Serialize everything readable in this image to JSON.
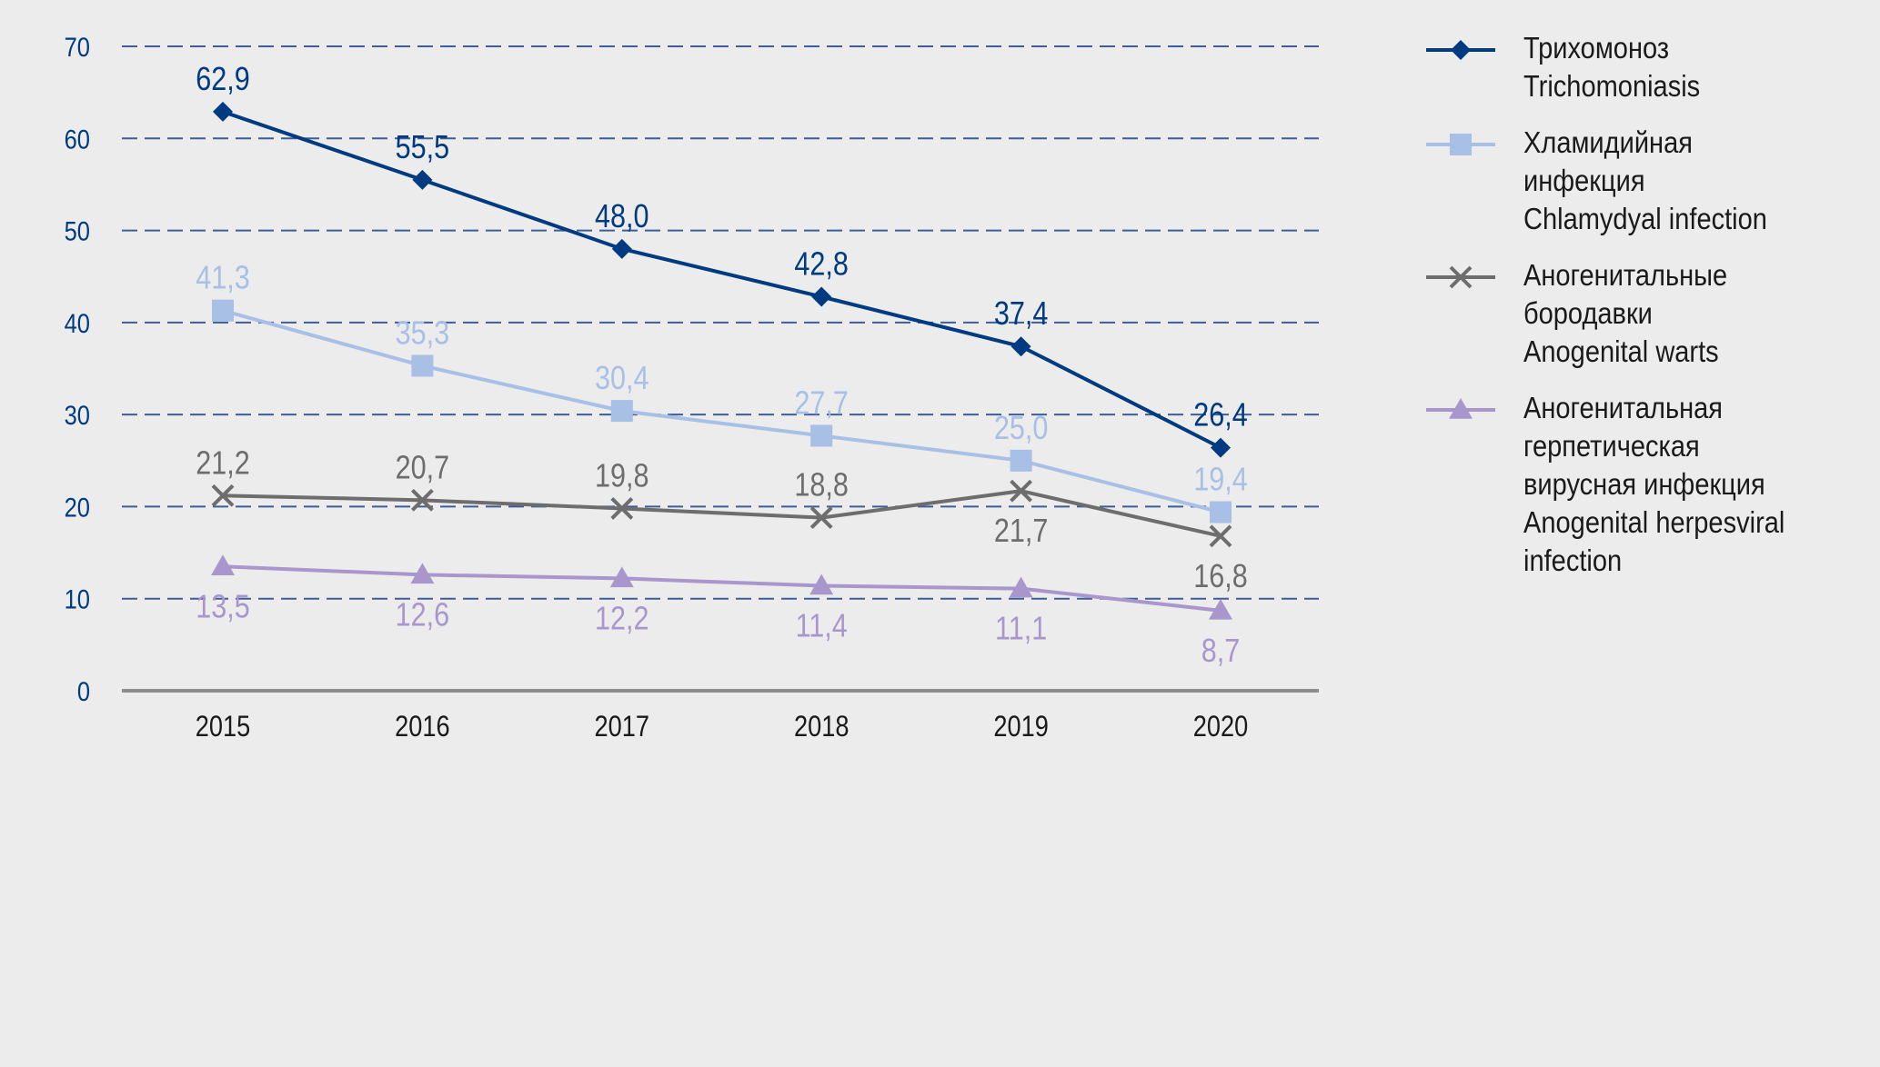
{
  "chart_data": {
    "type": "line",
    "title": "",
    "xlabel": "",
    "ylabel": "",
    "x": [
      "2015",
      "2016",
      "2017",
      "2018",
      "2019",
      "2020"
    ],
    "ylim": [
      0,
      70
    ],
    "yticks": [
      "0",
      "10",
      "20",
      "30",
      "40",
      "50",
      "60",
      "70"
    ],
    "grid": true,
    "legend_position": "right",
    "series": [
      {
        "name": "Трихомоноз / Trichomoniasis",
        "legend_lines": [
          "Трихомоноз",
          "Trichomoniasis"
        ],
        "marker": "diamond",
        "color": "#003a80",
        "values": [
          62.9,
          55.5,
          48.0,
          42.8,
          37.4,
          26.4
        ],
        "labels": [
          "62,9",
          "55,5",
          "48,0",
          "42,8",
          "37,4",
          "26,4"
        ],
        "label_pos": [
          "above",
          "above",
          "above",
          "above",
          "above",
          "above"
        ]
      },
      {
        "name": "Хламидийная инфекция / Chlamydyal infection",
        "legend_lines": [
          "Хламидийная",
          "инфекция",
          "Chlamydyal infection"
        ],
        "marker": "square",
        "color": "#a8bfe6",
        "values": [
          41.3,
          35.3,
          30.4,
          27.7,
          25.0,
          19.4
        ],
        "labels": [
          "41,3",
          "35,3",
          "30,4",
          "27,7",
          "25,0",
          "19,4"
        ],
        "label_pos": [
          "above",
          "above",
          "above",
          "above",
          "above",
          "above"
        ]
      },
      {
        "name": "Аногенитальные бородавки / Anogenital warts",
        "legend_lines": [
          "Аногенитальные",
          "бородавки",
          "Anogenital warts"
        ],
        "marker": "x",
        "color": "#6d6d6d",
        "values": [
          21.2,
          20.7,
          19.8,
          18.8,
          21.7,
          16.8
        ],
        "labels": [
          "21,2",
          "20,7",
          "19,8",
          "18,8",
          "21,7",
          "16,8"
        ],
        "label_pos": [
          "above",
          "above",
          "above",
          "above",
          "below",
          "below"
        ]
      },
      {
        "name": "Аногенитальная герпетическая вирусная инфекция / Anogenital herpesviral infection",
        "legend_lines": [
          "Аногенитальная",
          "герпетическая",
          "вирусная инфекция",
          "Anogenital herpesviral",
          "infection"
        ],
        "marker": "triangle",
        "color": "#a996cc",
        "values": [
          13.5,
          12.6,
          12.2,
          11.4,
          11.1,
          8.7
        ],
        "labels": [
          "13,5",
          "12,6",
          "12,2",
          "11,4",
          "11,1",
          "8,7"
        ],
        "label_pos": [
          "below",
          "below",
          "below",
          "below",
          "below",
          "below"
        ]
      }
    ]
  },
  "colors": {
    "background": "#ececec",
    "grid": "#3c5e98",
    "axis": "#8c8c8c",
    "ytick": "#003a80"
  }
}
